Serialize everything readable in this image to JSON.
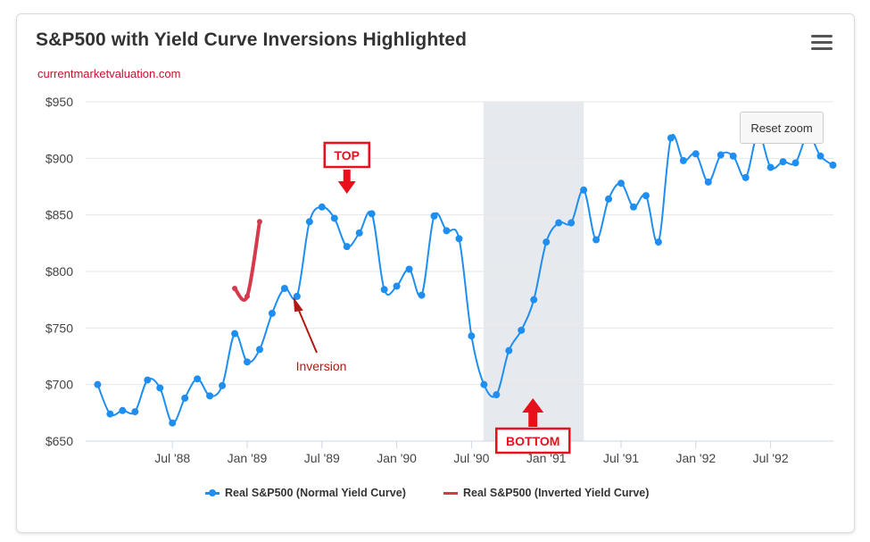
{
  "chart_data": {
    "type": "line",
    "title": "S&P500 with Yield Curve Inversions Highlighted",
    "subtitle": "currentmarketvaluation.com",
    "ylabel": "",
    "xlabel": "",
    "ylim": [
      650,
      950
    ],
    "yticks": [
      650,
      700,
      750,
      800,
      850,
      900,
      950
    ],
    "ytick_labels": [
      "$650",
      "$700",
      "$750",
      "$800",
      "$850",
      "$900",
      "$950"
    ],
    "xlim": [
      1987.92,
      1992.92
    ],
    "xticks": [
      1988.5,
      1989.0,
      1989.5,
      1990.0,
      1990.5,
      1991.0,
      1991.5,
      1992.0,
      1992.5
    ],
    "xtick_labels": [
      "Jul '88",
      "Jan '89",
      "Jul '89",
      "Jan '90",
      "Jul '90",
      "Jan '91",
      "Jul '91",
      "Jan '92",
      "Jul '92"
    ],
    "grid": true,
    "highlight_band": {
      "from": 1990.58,
      "to": 1991.25,
      "label": ""
    },
    "x": [
      1988.0,
      1988.0833,
      1988.1667,
      1988.25,
      1988.3333,
      1988.4167,
      1988.5,
      1988.5833,
      1988.6667,
      1988.75,
      1988.8333,
      1988.9167,
      1989.0,
      1989.0833,
      1989.1667,
      1989.25,
      1989.3333,
      1989.4167,
      1989.5,
      1989.5833,
      1989.6667,
      1989.75,
      1989.8333,
      1989.9167,
      1990.0,
      1990.0833,
      1990.1667,
      1990.25,
      1990.3333,
      1990.4167,
      1990.5,
      1990.5833,
      1990.6667,
      1990.75,
      1990.8333,
      1990.9167,
      1991.0,
      1991.0833,
      1991.1667,
      1991.25,
      1991.3333,
      1991.4167,
      1991.5,
      1991.5833,
      1991.6667,
      1991.75,
      1991.8333,
      1991.9167,
      1992.0,
      1992.0833,
      1992.1667,
      1992.25,
      1992.3333,
      1992.4167,
      1992.5,
      1992.5833,
      1992.6667,
      1992.75,
      1992.8333,
      1992.9167
    ],
    "series": [
      {
        "name": "Real S&P500 (Normal Yield Curve)",
        "color": "#1f8ef1",
        "values": [
          700,
          674,
          677,
          676,
          704,
          697,
          666,
          688,
          705,
          690,
          699,
          745,
          720,
          731,
          763,
          785,
          778,
          844,
          857,
          847,
          822,
          834,
          851,
          784,
          787,
          802,
          779,
          849,
          836,
          829,
          743,
          700,
          691,
          730,
          748,
          775,
          826,
          843,
          843,
          872,
          828,
          864,
          878,
          857,
          867,
          826,
          918,
          898,
          904,
          879,
          903,
          902,
          883,
          922,
          892,
          897,
          896,
          921,
          902,
          894
        ]
      },
      {
        "name": "Real S&P500 (Inverted Yield Curve)",
        "color": "#d6394c",
        "x": [
          1988.9167,
          1989.0,
          1989.0833
        ],
        "values": [
          785,
          778,
          844
        ]
      }
    ],
    "annotations": [
      {
        "text": "TOP",
        "type": "box-arrow-down",
        "x": 1989.6667,
        "y": 900
      },
      {
        "text": "BOTTOM",
        "type": "box-arrow-up",
        "x": 1990.9167,
        "y": 691
      },
      {
        "text": "Inversion",
        "type": "text-arrow",
        "x": 1989.5,
        "y": 775
      }
    ]
  },
  "legend": {
    "items": [
      {
        "label": "Real S&P500 (Normal Yield Curve)",
        "color": "#1f8ef1"
      },
      {
        "label": "Real S&P500 (Inverted Yield Curve)",
        "color": "#d6394c"
      }
    ]
  },
  "controls": {
    "reset_zoom_label": "Reset zoom",
    "menu_icon": "hamburger-menu-icon"
  },
  "annotation_labels": {
    "top": "TOP",
    "bottom": "BOTTOM",
    "inversion": "Inversion"
  }
}
